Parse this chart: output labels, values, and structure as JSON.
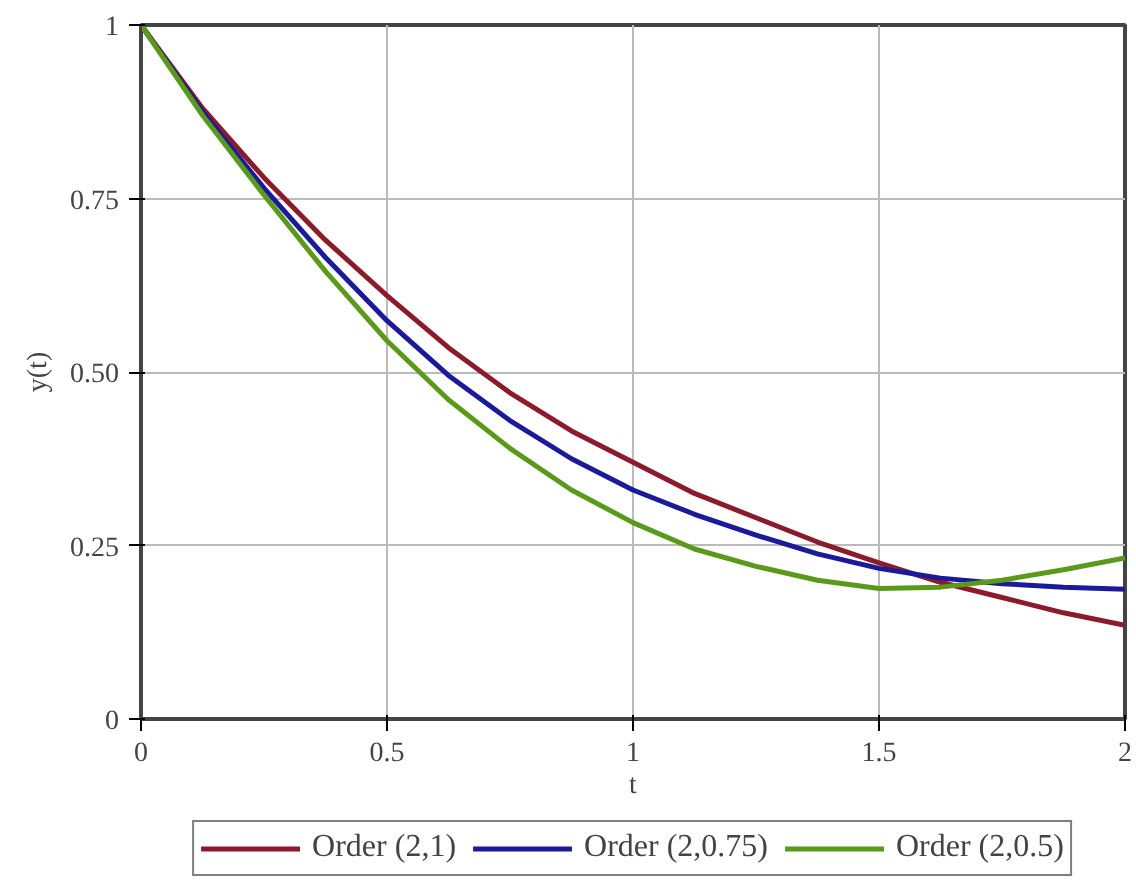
{
  "chart_data": {
    "type": "line",
    "xlabel": "t",
    "ylabel": "y(t)",
    "x": [
      0,
      0.125,
      0.25,
      0.375,
      0.5,
      0.625,
      0.75,
      0.875,
      1,
      1.125,
      1.25,
      1.375,
      1.5,
      1.625,
      1.75,
      1.875,
      2
    ],
    "series": [
      {
        "name": "Order (2,1)",
        "color": "#8b1a2b",
        "values": [
          1,
          0.88,
          0.78,
          0.69,
          0.61,
          0.535,
          0.47,
          0.415,
          0.37,
          0.325,
          0.29,
          0.255,
          0.225,
          0.197,
          0.175,
          0.153,
          0.135
        ]
      },
      {
        "name": "Order (2,0.75)",
        "color": "#1a1a9a",
        "values": [
          1,
          0.875,
          0.765,
          0.665,
          0.574,
          0.495,
          0.43,
          0.375,
          0.33,
          0.295,
          0.265,
          0.238,
          0.217,
          0.203,
          0.195,
          0.19,
          0.187
        ]
      },
      {
        "name": "Order (2,0.5)",
        "color": "#5a9a1a",
        "values": [
          1,
          0.87,
          0.755,
          0.645,
          0.545,
          0.46,
          0.39,
          0.33,
          0.283,
          0.245,
          0.22,
          0.2,
          0.188,
          0.19,
          0.2,
          0.215,
          0.232
        ]
      }
    ],
    "xlim": [
      0,
      2
    ],
    "ylim": [
      0,
      1
    ],
    "xticks": [
      0,
      0.5,
      1,
      1.5,
      2
    ],
    "yticks": [
      0,
      {
        "value": 0.25,
        "label": "0.25"
      },
      {
        "value": 0.5,
        "label": "0.50"
      },
      {
        "value": 0.75,
        "label": "0.75"
      },
      1
    ],
    "grid": true,
    "legend": "bottom",
    "line_style": "solid",
    "marker": "none"
  }
}
